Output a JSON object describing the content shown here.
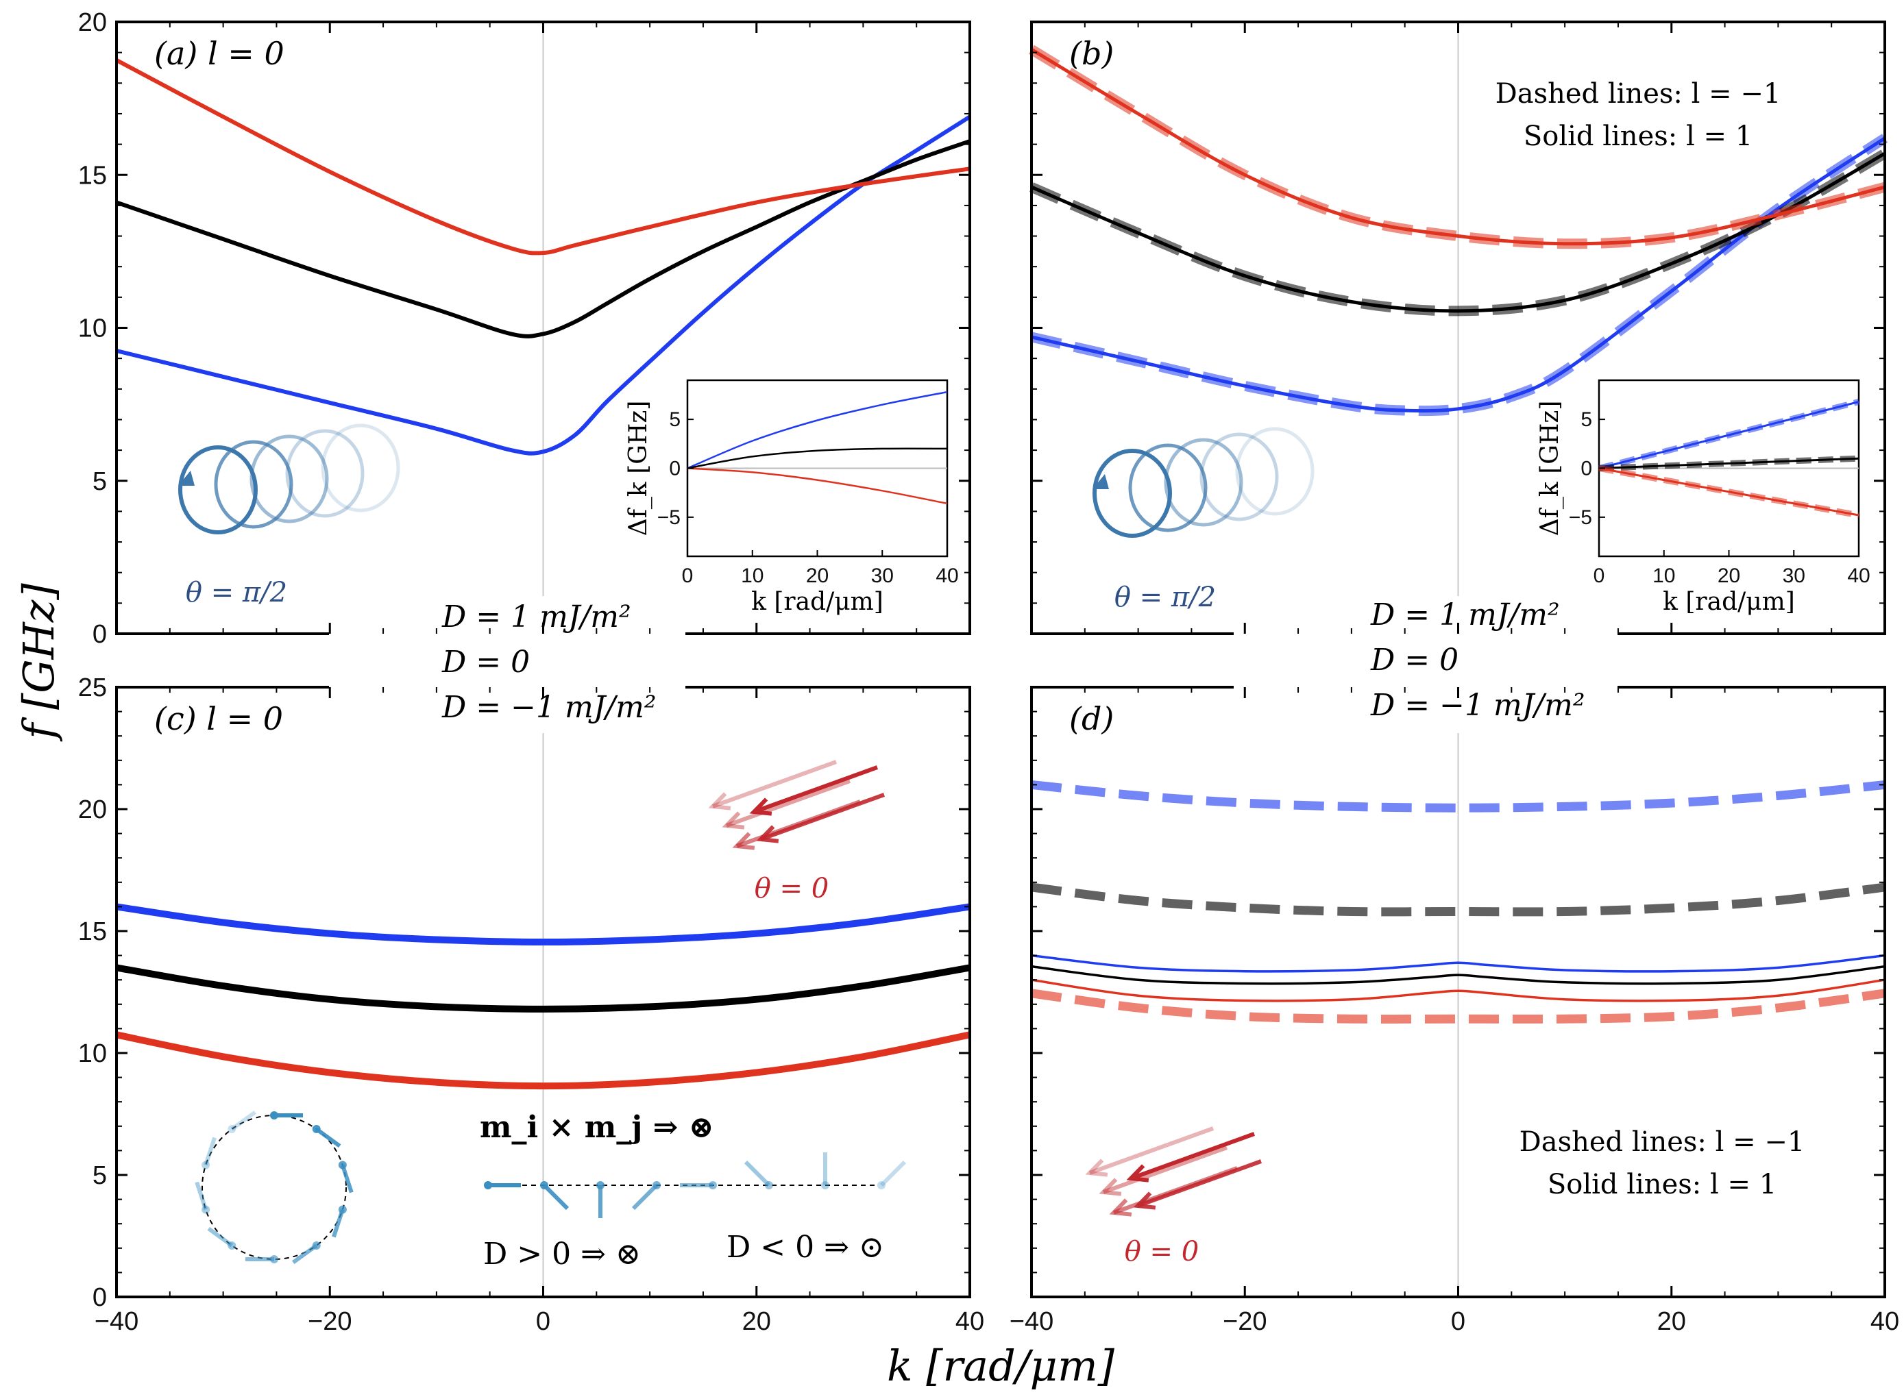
{
  "colors": {
    "blue": "#1f3cf0",
    "black": "#000000",
    "red": "#e0331f",
    "inset_blue": "#8aa0e8",
    "cone_blue": "#3d78ad",
    "arrow_red": "#c1272d",
    "label_blue": "#2e4f83"
  },
  "axes": {
    "xlabel": "k [rad/μm]",
    "ylabel": "f [GHz]"
  },
  "legends": {
    "left": [
      "D = 1 mJ/m²",
      "D = 0",
      "D = −1 mJ/m²"
    ],
    "right": [
      "D = 1 mJ/m²",
      "D = 0",
      "D = −1 mJ/m²"
    ]
  },
  "chart_data": [
    {
      "type": "line",
      "panel": "(a)",
      "title": "(a) l = 0",
      "annotation": "θ = π/2",
      "xlim": [
        -40,
        40
      ],
      "ylim": [
        0,
        20
      ],
      "xticks": [
        -40,
        -20,
        0,
        20,
        40
      ],
      "yticks": [
        0,
        5,
        10,
        15,
        20
      ],
      "series": [
        {
          "name": "D = 1 mJ/m²",
          "color": "blue",
          "x": [
            -40,
            -30,
            -20,
            -10,
            -3,
            0,
            3,
            6,
            10,
            15,
            20,
            25,
            30,
            35,
            40
          ],
          "y": [
            9.25,
            8.4,
            7.55,
            6.7,
            6.0,
            5.95,
            6.5,
            7.6,
            8.9,
            10.5,
            12.0,
            13.4,
            14.7,
            15.8,
            16.9
          ]
        },
        {
          "name": "D = 0",
          "color": "black",
          "x": [
            -40,
            -30,
            -20,
            -10,
            -3,
            0,
            3,
            6,
            10,
            15,
            20,
            25,
            30,
            35,
            40
          ],
          "y": [
            14.1,
            12.9,
            11.7,
            10.6,
            9.8,
            9.8,
            10.2,
            10.8,
            11.6,
            12.5,
            13.3,
            14.1,
            14.8,
            15.5,
            16.1
          ]
        },
        {
          "name": "D = −1 mJ/m²",
          "color": "red",
          "x": [
            -40,
            -30,
            -20,
            -10,
            -3,
            0,
            3,
            10,
            20,
            30,
            40
          ],
          "y": [
            18.75,
            16.9,
            15.1,
            13.5,
            12.6,
            12.45,
            12.7,
            13.3,
            14.1,
            14.7,
            15.2
          ]
        }
      ],
      "inset": {
        "xlabel": "k [rad/μm]",
        "ylabel": "Δf_k [GHz]",
        "xlim": [
          0,
          40
        ],
        "ylim": [
          -9,
          9
        ],
        "xticks": [
          0,
          10,
          20,
          30,
          40
        ],
        "yticks": [
          -5,
          0,
          5
        ],
        "series": [
          {
            "name": "D = 1 mJ/m²",
            "color": "blue",
            "x": [
              0,
              10,
              20,
              30,
              40
            ],
            "y": [
              0,
              2.8,
              4.9,
              6.5,
              7.8
            ]
          },
          {
            "name": "D = 0",
            "color": "black",
            "x": [
              0,
              10,
              20,
              30,
              40
            ],
            "y": [
              0,
              1.2,
              1.8,
              2.0,
              2.0
            ]
          },
          {
            "name": "D = −1 mJ/m²",
            "color": "red",
            "x": [
              0,
              10,
              20,
              30,
              40
            ],
            "y": [
              0,
              -0.4,
              -1.2,
              -2.3,
              -3.6
            ]
          }
        ]
      }
    },
    {
      "type": "line",
      "panel": "(b)",
      "title": "(b)",
      "annotation": "θ = π/2",
      "notes": [
        "Dashed lines: l = −1",
        "Solid lines: l = 1"
      ],
      "xlim": [
        -40,
        40
      ],
      "ylim": [
        0,
        20
      ],
      "xticks": [
        -40,
        -20,
        0,
        20,
        40
      ],
      "yticks": [
        0,
        5,
        10,
        15,
        20
      ],
      "series": [
        {
          "name": "D = 1 mJ/m²",
          "color": "blue",
          "x": [
            -40,
            -30,
            -20,
            -10,
            -5,
            0,
            5,
            10,
            20,
            30,
            40
          ],
          "y": [
            9.7,
            8.9,
            8.1,
            7.45,
            7.3,
            7.35,
            7.75,
            8.6,
            11.2,
            13.9,
            16.2
          ]
        },
        {
          "name": "D = 0",
          "color": "black",
          "x": [
            -40,
            -30,
            -20,
            -10,
            0,
            10,
            20,
            30,
            40
          ],
          "y": [
            14.6,
            13.1,
            11.7,
            10.85,
            10.55,
            10.9,
            12.1,
            13.7,
            15.7
          ]
        },
        {
          "name": "D = −1 mJ/m²",
          "color": "red",
          "x": [
            -40,
            -30,
            -20,
            -10,
            0,
            10,
            20,
            30,
            40
          ],
          "y": [
            19.1,
            17.0,
            15.0,
            13.6,
            13.0,
            12.75,
            12.95,
            13.7,
            14.6
          ]
        }
      ],
      "inset": {
        "xlabel": "k [rad/μm]",
        "ylabel": "Δf_k [GHz]",
        "xlim": [
          0,
          40
        ],
        "ylim": [
          -9,
          9
        ],
        "xticks": [
          0,
          10,
          20,
          30,
          40
        ],
        "yticks": [
          -5,
          0,
          5
        ],
        "series": [
          {
            "name": "D = 1 mJ/m²",
            "color": "blue",
            "x": [
              0,
              10,
              20,
              30,
              40
            ],
            "y": [
              0,
              1.7,
              3.4,
              5.1,
              6.8
            ]
          },
          {
            "name": "D = 0",
            "color": "black",
            "x": [
              0,
              10,
              20,
              30,
              40
            ],
            "y": [
              0,
              0.25,
              0.5,
              0.75,
              1.0
            ]
          },
          {
            "name": "D = −1 mJ/m²",
            "color": "red",
            "x": [
              0,
              10,
              20,
              30,
              40
            ],
            "y": [
              0,
              -1.2,
              -2.4,
              -3.6,
              -4.8
            ]
          }
        ]
      }
    },
    {
      "type": "line",
      "panel": "(c)",
      "title": "(c) l = 0",
      "annotation": "θ = 0",
      "equations": [
        "m_i × m_j ⇒ ⊗",
        "D > 0 ⇒ ⊗",
        "D < 0 ⇒ ⊙"
      ],
      "xlim": [
        -40,
        40
      ],
      "ylim": [
        0,
        25
      ],
      "xticks": [
        -40,
        -20,
        0,
        20,
        40
      ],
      "yticks": [
        0,
        5,
        10,
        15,
        20,
        25
      ],
      "series": [
        {
          "name": "D = 1 mJ/m²",
          "color": "blue",
          "x": [
            -40,
            -30,
            -20,
            -10,
            0,
            10,
            20,
            30,
            40
          ],
          "y": [
            16.0,
            15.35,
            14.9,
            14.65,
            14.55,
            14.65,
            14.9,
            15.35,
            16.0
          ]
        },
        {
          "name": "D = 0",
          "color": "black",
          "x": [
            -40,
            -30,
            -20,
            -10,
            0,
            10,
            20,
            30,
            40
          ],
          "y": [
            13.5,
            12.75,
            12.2,
            11.9,
            11.8,
            11.9,
            12.2,
            12.75,
            13.5
          ]
        },
        {
          "name": "D = −1 mJ/m²",
          "color": "red",
          "x": [
            -40,
            -30,
            -20,
            -10,
            0,
            10,
            20,
            30,
            40
          ],
          "y": [
            10.75,
            9.85,
            9.2,
            8.8,
            8.65,
            8.8,
            9.2,
            9.85,
            10.75
          ]
        }
      ]
    },
    {
      "type": "line",
      "panel": "(d)",
      "title": "(d)",
      "annotation": "θ = 0",
      "notes": [
        "Dashed lines: l = −1",
        "Solid lines: l = 1"
      ],
      "xlim": [
        -40,
        40
      ],
      "ylim": [
        0,
        25
      ],
      "xticks": [
        -40,
        -20,
        0,
        20,
        40
      ],
      "yticks": [
        0,
        5,
        10,
        15,
        20,
        25
      ],
      "series": [
        {
          "name": "D = 1 mJ/m², l = −1",
          "color": "blue",
          "style": "dashed",
          "x": [
            -40,
            -30,
            -20,
            -10,
            0,
            10,
            20,
            30,
            40
          ],
          "y": [
            21.0,
            20.55,
            20.25,
            20.1,
            20.05,
            20.1,
            20.25,
            20.55,
            21.0
          ]
        },
        {
          "name": "D = 0, l = −1",
          "color": "black",
          "style": "dashed",
          "x": [
            -40,
            -30,
            -20,
            -10,
            0,
            10,
            20,
            30,
            40
          ],
          "y": [
            16.8,
            16.25,
            15.95,
            15.8,
            15.8,
            15.8,
            15.95,
            16.25,
            16.8
          ]
        },
        {
          "name": "D = 1 mJ/m², l = 1",
          "color": "blue",
          "style": "solid",
          "x": [
            -40,
            -30,
            -20,
            -10,
            -3,
            0,
            3,
            10,
            20,
            30,
            40
          ],
          "y": [
            14.0,
            13.5,
            13.35,
            13.4,
            13.6,
            13.7,
            13.6,
            13.4,
            13.35,
            13.5,
            14.0
          ]
        },
        {
          "name": "D = 0, l = 1",
          "color": "black",
          "style": "solid",
          "x": [
            -40,
            -30,
            -20,
            -10,
            -3,
            0,
            3,
            10,
            20,
            30,
            40
          ],
          "y": [
            13.55,
            13.0,
            12.85,
            12.9,
            13.1,
            13.2,
            13.1,
            12.9,
            12.85,
            13.0,
            13.55
          ]
        },
        {
          "name": "D = −1 mJ/m², l = 1",
          "color": "red",
          "style": "solid",
          "x": [
            -40,
            -30,
            -20,
            -10,
            -3,
            0,
            3,
            10,
            20,
            30,
            40
          ],
          "y": [
            13.0,
            12.35,
            12.15,
            12.2,
            12.45,
            12.55,
            12.45,
            12.2,
            12.15,
            12.35,
            13.0
          ]
        },
        {
          "name": "D = −1 mJ/m², l = −1",
          "color": "red",
          "style": "dashed",
          "x": [
            -40,
            -30,
            -20,
            -10,
            0,
            10,
            20,
            30,
            40
          ],
          "y": [
            12.45,
            11.85,
            11.5,
            11.4,
            11.4,
            11.4,
            11.5,
            11.85,
            12.45
          ]
        }
      ]
    }
  ]
}
